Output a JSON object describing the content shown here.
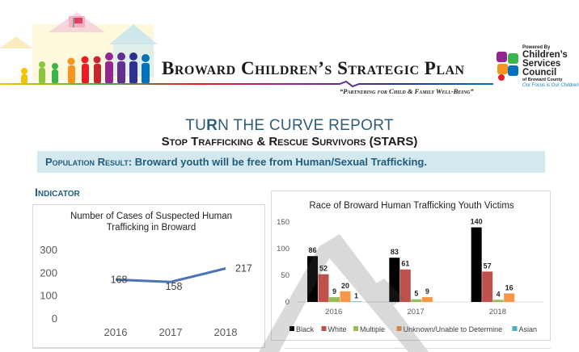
{
  "header": {
    "title": "Broward Children’s Strategic Plan",
    "tagline": "“Partnering for Child & Family Well-Being”",
    "logo": {
      "powered_by": "Powered By",
      "name": "Children’s Services Council",
      "county": "of Broward County",
      "motto": "Our Focus is Our Children"
    }
  },
  "report": {
    "title_part1": "TU",
    "title_r": "R",
    "title_part2": "N THE CURVE REPORT",
    "subtitle": "Stop Trafficking & Rescue Survivors (STARS)"
  },
  "population_result": {
    "label": "Population Result:",
    "text": "Broward youth will be free from Human/Sexual Trafficking."
  },
  "indicator_heading": "Indicator",
  "colors": {
    "line": "#4a74b4",
    "black": "#000000",
    "white": "#c0504d",
    "multiple": "#9bbb59",
    "unknown": "#f79646",
    "asian": "#4bacc6"
  },
  "chart_data": [
    {
      "type": "line",
      "title": "Number of Cases of Suspected Human Trafficking in Broward",
      "title_line1": "Number of Cases of Suspected Human",
      "title_line2": "Trafficking in Broward",
      "categories": [
        "2016",
        "2017",
        "2018"
      ],
      "values": [
        168,
        158,
        217
      ],
      "data_labels": [
        "168",
        "158",
        "217"
      ],
      "ylim": [
        0,
        300
      ],
      "yticks": [
        0,
        100,
        200,
        300
      ],
      "ytick_labels": [
        "0",
        "100",
        "200",
        "300"
      ],
      "grid": false
    },
    {
      "type": "bar",
      "title": "Race of Broward Human Trafficking Youth Victims",
      "categories": [
        "2016",
        "2017",
        "2018"
      ],
      "ylim": [
        0,
        150
      ],
      "yticks": [
        0,
        50,
        100,
        150
      ],
      "ytick_labels": [
        "0",
        "50",
        "100",
        "150"
      ],
      "legend_position": "bottom",
      "series": [
        {
          "name": "Black",
          "values": [
            86,
            83,
            140
          ],
          "labels": [
            "86",
            "83",
            "140"
          ]
        },
        {
          "name": "White",
          "values": [
            52,
            61,
            57
          ],
          "labels": [
            "52",
            "61",
            "57"
          ]
        },
        {
          "name": "Multiple",
          "values": [
            9,
            5,
            4
          ],
          "labels": [
            "9",
            "5",
            "4"
          ]
        },
        {
          "name": "Unknown/Unable to Determine",
          "values": [
            20,
            9,
            16
          ],
          "labels": [
            "20",
            "9",
            "16"
          ]
        },
        {
          "name": "Asian",
          "values": [
            1,
            0,
            0
          ],
          "labels": [
            "1",
            "",
            ""
          ]
        }
      ]
    }
  ]
}
